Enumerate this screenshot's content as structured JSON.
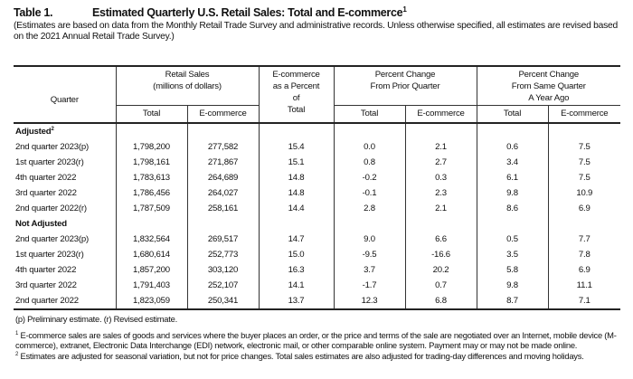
{
  "title": {
    "label": "Table 1.",
    "text": "Estimated Quarterly U.S. Retail Sales: Total and E-commerce",
    "footnote_mark": "1"
  },
  "subtitle": "(Estimates are based on data from the Monthly Retail Trade Survey and administrative records. Unless otherwise specified, all estimates are revised based on the 2021 Annual Retail Trade Survey.)",
  "headers": {
    "quarter": "Quarter",
    "retail_sales": [
      "Retail Sales",
      "(millions of dollars)"
    ],
    "ecom_pct": [
      "E-commerce",
      "as a Percent",
      "of",
      "Total"
    ],
    "prior_quarter": [
      "Percent Change",
      "From Prior Quarter"
    ],
    "year_ago": [
      "Percent Change",
      "From Same Quarter",
      "A Year Ago"
    ],
    "sub": [
      "Total",
      "E-commerce",
      "Total",
      "E-commerce",
      "Total",
      "E-commerce"
    ]
  },
  "sections": [
    {
      "label": "Adjusted",
      "mark": "2",
      "rows": [
        [
          "2nd quarter 2023(p)",
          "1,798,200",
          "277,582",
          "15.4",
          "0.0",
          "2.1",
          "0.6",
          "7.5"
        ],
        [
          "1st quarter 2023(r)",
          "1,798,161",
          "271,867",
          "15.1",
          "0.8",
          "2.7",
          "3.4",
          "7.5"
        ],
        [
          "4th quarter 2022",
          "1,783,613",
          "264,689",
          "14.8",
          "-0.2",
          "0.3",
          "6.1",
          "7.5"
        ],
        [
          "3rd quarter 2022",
          "1,786,456",
          "264,027",
          "14.8",
          "-0.1",
          "2.3",
          "9.8",
          "10.9"
        ],
        [
          "2nd quarter 2022(r)",
          "1,787,509",
          "258,161",
          "14.4",
          "2.8",
          "2.1",
          "8.6",
          "6.9"
        ]
      ]
    },
    {
      "label": "Not Adjusted",
      "mark": "",
      "rows": [
        [
          "2nd quarter 2023(p)",
          "1,832,564",
          "269,517",
          "14.7",
          "9.0",
          "6.6",
          "0.5",
          "7.7"
        ],
        [
          "1st quarter 2023(r)",
          "1,680,614",
          "252,773",
          "15.0",
          "-9.5",
          "-16.6",
          "3.5",
          "7.8"
        ],
        [
          "4th quarter 2022",
          "1,857,200",
          "303,120",
          "16.3",
          "3.7",
          "20.2",
          "5.8",
          "6.9"
        ],
        [
          "3rd quarter 2022",
          "1,791,403",
          "252,107",
          "14.1",
          "-1.7",
          "0.7",
          "9.8",
          "11.1"
        ],
        [
          "2nd quarter 2022",
          "1,823,059",
          "250,341",
          "13.7",
          "12.3",
          "6.8",
          "8.7",
          "7.1"
        ]
      ]
    }
  ],
  "notes": {
    "legend": "(p) Preliminary estimate. (r) Revised estimate.",
    "fn1_mark": "1",
    "fn1": "E-commerce sales are sales of goods and services where the buyer places an order, or the price and terms of the sale are negotiated over an Internet, mobile device (M-commerce), extranet, Electronic Data Interchange (EDI) network, electronic mail, or other comparable online system. Payment may or may not be made online.",
    "fn2_mark": "2",
    "fn2": "Estimates are adjusted for seasonal variation, but not for price changes. Total sales estimates are also adjusted for trading-day differences and moving holidays."
  }
}
